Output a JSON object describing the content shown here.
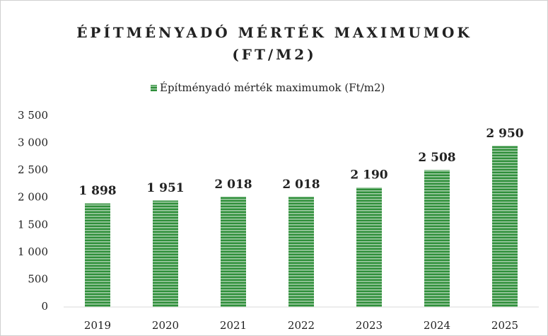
{
  "chart_data": {
    "type": "bar",
    "title": "ÉPÍTMÉNYADÓ MÉRTÉK MAXIMUMOK (FT/M2)",
    "categories": [
      "2019",
      "2020",
      "2021",
      "2022",
      "2023",
      "2024",
      "2025"
    ],
    "series": [
      {
        "name": "Építményadó mérték maximumok (Ft/m2)",
        "color": "#2f8f3a",
        "values": [
          1898,
          1951,
          2018,
          2018,
          2190,
          2508,
          2950
        ],
        "value_labels": [
          "1 898",
          "1 951",
          "2 018",
          "2 018",
          "2 190",
          "2 508",
          "2 950"
        ]
      }
    ],
    "ylim": [
      0,
      3500
    ],
    "yticks": [
      0,
      500,
      {
        "value": 1000,
        "label": "1 000"
      },
      {
        "value": 1500,
        "label": "1 500"
      },
      {
        "value": 2000,
        "label": "2 000"
      },
      {
        "value": 2500,
        "label": "2 500"
      },
      {
        "value": 3000,
        "label": "3 000"
      },
      {
        "value": 3500,
        "label": "3 500"
      }
    ],
    "grid": false,
    "legend": "top"
  }
}
